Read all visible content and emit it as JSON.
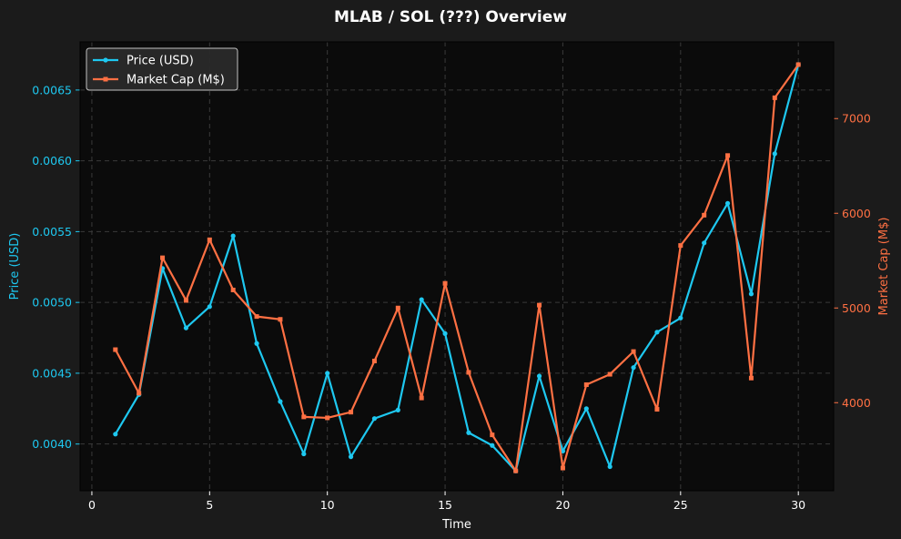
{
  "chart_data": {
    "type": "line",
    "title": "MLAB / SOL (???) Overview",
    "xlabel": "Time",
    "ylabel_left": "Price (USD)",
    "ylabel_right": "Market Cap (M$)",
    "x": [
      1,
      2,
      3,
      4,
      5,
      6,
      7,
      8,
      9,
      10,
      11,
      12,
      13,
      14,
      15,
      16,
      17,
      18,
      19,
      20,
      21,
      22,
      23,
      24,
      25,
      26,
      27,
      28,
      29,
      30
    ],
    "xlim": [
      -0.5,
      31.5
    ],
    "xticks": [
      0,
      5,
      10,
      15,
      20,
      25,
      30
    ],
    "grid": true,
    "legend": "top-left",
    "series": [
      {
        "name": "Price (USD)",
        "axis": "left",
        "color": "#1ec8f0",
        "marker": "circle",
        "values": [
          0.00407,
          0.00435,
          0.00524,
          0.00482,
          0.00497,
          0.00547,
          0.00471,
          0.0043,
          0.00393,
          0.0045,
          0.00391,
          0.00418,
          0.00424,
          0.00502,
          0.00478,
          0.00408,
          0.00399,
          0.00381,
          0.00448,
          0.00395,
          0.00425,
          0.00384,
          0.00454,
          0.00479,
          0.00489,
          0.00542,
          0.0057,
          0.00506,
          0.00605,
          0.00668
        ]
      },
      {
        "name": "Market Cap (M$)",
        "axis": "right",
        "color": "#ff7043",
        "marker": "square",
        "values": [
          4560,
          4100,
          5530,
          5080,
          5720,
          5190,
          4910,
          4880,
          3850,
          3840,
          3900,
          4440,
          5000,
          4050,
          5260,
          4320,
          3660,
          3280,
          5030,
          3310,
          4190,
          4300,
          4540,
          3930,
          5660,
          5980,
          6610,
          4260,
          7220,
          7570
        ]
      }
    ],
    "ylim_left": [
      0.00367,
      0.00684
    ],
    "yticks_left": [
      "0.0040",
      "0.0045",
      "0.0050",
      "0.0055",
      "0.0060",
      "0.0065"
    ],
    "yticks_left_values": [
      0.004,
      0.0045,
      0.005,
      0.0055,
      0.006,
      0.0065
    ],
    "ylim_right": [
      3070,
      7810
    ],
    "yticks_right": [
      "4000",
      "5000",
      "6000",
      "7000"
    ],
    "yticks_right_values": [
      4000,
      5000,
      6000,
      7000
    ],
    "colors": {
      "background": "#1b1b1b",
      "plot_background": "#0b0b0b",
      "left_axis": "#1ec8f0",
      "right_axis": "#ff7043",
      "text": "#ffffff"
    }
  }
}
